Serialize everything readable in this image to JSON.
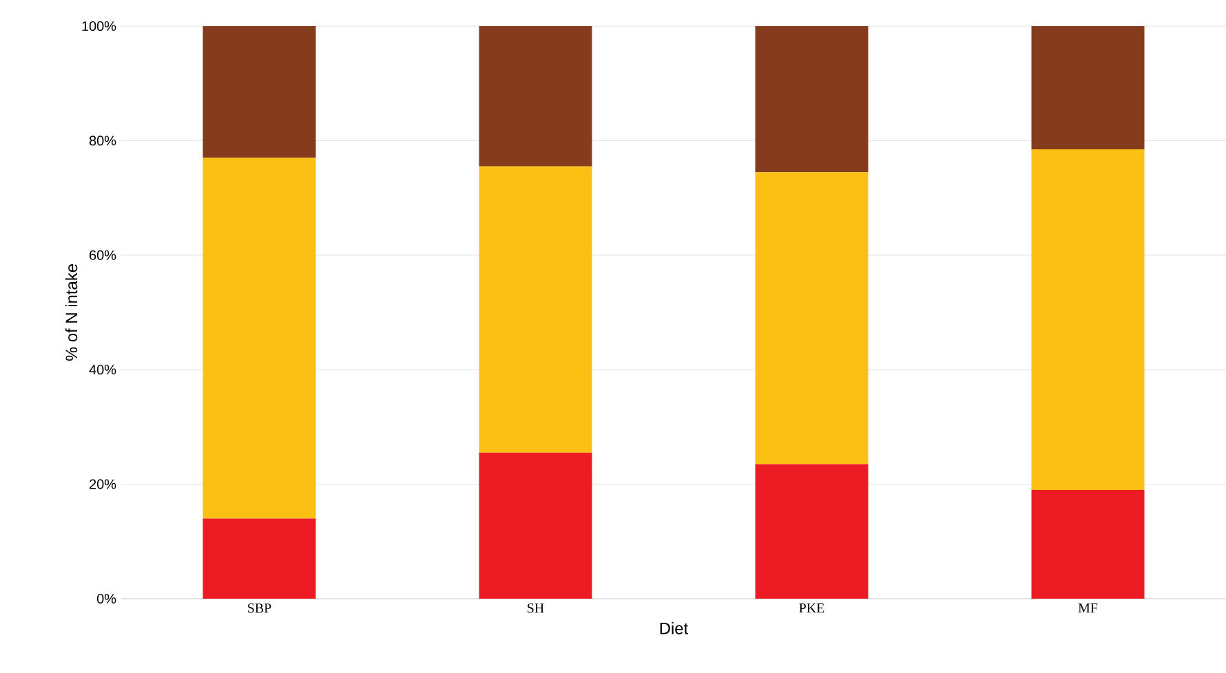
{
  "chart_data": {
    "type": "bar",
    "stacked": true,
    "xlabel": "Diet",
    "ylabel": "% of N intake",
    "categories": [
      "SBP",
      "SH",
      "PKE",
      "MF"
    ],
    "series": [
      {
        "color": "#ed1c24",
        "values": [
          14,
          25.5,
          23.5,
          19
        ]
      },
      {
        "color": "#fcc014",
        "values": [
          63,
          50,
          51,
          59.5
        ]
      },
      {
        "color": "#843c1c",
        "values": [
          23,
          24.5,
          25.5,
          21.5
        ]
      }
    ],
    "ylim": [
      0,
      100
    ],
    "yticks": [
      {
        "value": 0,
        "label": "0%"
      },
      {
        "value": 20,
        "label": "20%"
      },
      {
        "value": 40,
        "label": "40%"
      },
      {
        "value": 60,
        "label": "60%"
      },
      {
        "value": 80,
        "label": "80%"
      },
      {
        "value": 100,
        "label": "100%"
      }
    ],
    "grid": "y"
  }
}
